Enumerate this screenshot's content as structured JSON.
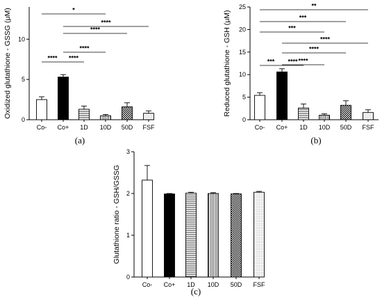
{
  "chart_data": [
    {
      "type": "bar",
      "panel_label": "(a)",
      "ylabel": "Oxidized glutathione - GSSG (μM)",
      "categories": [
        "Co-",
        "Co+",
        "1D",
        "10D",
        "50D",
        "FSF"
      ],
      "values": [
        2.5,
        5.3,
        1.3,
        0.5,
        1.6,
        0.8
      ],
      "errors": [
        0.35,
        0.3,
        0.4,
        0.15,
        0.5,
        0.3
      ],
      "ylim": [
        0,
        14
      ],
      "yticks": [
        0,
        5,
        10
      ],
      "significance": [
        {
          "from": 0,
          "to": 3,
          "label": "*"
        },
        {
          "from": 1,
          "to": 5,
          "label": "****"
        },
        {
          "from": 1,
          "to": 4,
          "label": "****"
        },
        {
          "from": 1,
          "to": 3,
          "label": "****"
        },
        {
          "from": 0,
          "to": 1,
          "label": "****"
        },
        {
          "from": 1,
          "to": 2,
          "label": "****"
        }
      ]
    },
    {
      "type": "bar",
      "panel_label": "(b)",
      "ylabel": "Reduced glutathione - GSH (μM)",
      "categories": [
        "Co-",
        "Co+",
        "1D",
        "10D",
        "50D",
        "FSF"
      ],
      "values": [
        5.4,
        10.6,
        2.6,
        1.0,
        3.2,
        1.6
      ],
      "errors": [
        0.6,
        0.7,
        0.9,
        0.3,
        1.0,
        0.6
      ],
      "ylim": [
        0,
        25
      ],
      "yticks": [
        0,
        5,
        10,
        15,
        20,
        25
      ],
      "significance": [
        {
          "from": 0,
          "to": 5,
          "label": "**"
        },
        {
          "from": 0,
          "to": 4,
          "label": "***"
        },
        {
          "from": 0,
          "to": 3,
          "label": "***"
        },
        {
          "from": 1,
          "to": 5,
          "label": "****"
        },
        {
          "from": 1,
          "to": 4,
          "label": "****"
        },
        {
          "from": 1,
          "to": 3,
          "label": "****"
        },
        {
          "from": 0,
          "to": 1,
          "label": "***"
        },
        {
          "from": 1,
          "to": 2,
          "label": "****"
        }
      ]
    },
    {
      "type": "bar",
      "panel_label": "(c)",
      "ylabel": "Glutathione ratio - GSH/GSSG",
      "categories": [
        "Co-",
        "Co+",
        "1D",
        "10D",
        "50D",
        "FSF"
      ],
      "values": [
        2.32,
        1.99,
        2.01,
        2.0,
        1.99,
        2.03
      ],
      "errors": [
        0.35,
        0.01,
        0.02,
        0.02,
        0.01,
        0.02
      ],
      "ylim": [
        0,
        3
      ],
      "yticks": [
        0,
        1,
        2,
        3
      ],
      "significance": []
    }
  ]
}
